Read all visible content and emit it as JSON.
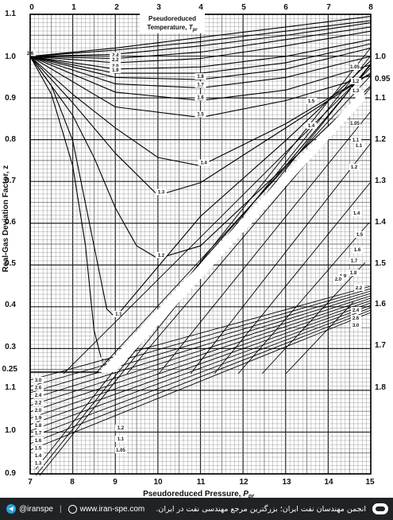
{
  "chart_data": {
    "type": "line",
    "xlabel_prefix": "Pseudoreduced Pressure, ",
    "xlabel_var": "P",
    "xlabel_sub": "pr",
    "ylabel": "Real-Gas Deviation Factor, z",
    "legend_title_line1": "Pseudoreduced",
    "legend_title_line2_prefix": "Temperature, ",
    "legend_title_var": "T",
    "legend_title_sub": "pr",
    "top_axis": {
      "ticks": [
        "0",
        "1",
        "2",
        "3",
        "4",
        "5",
        "6",
        "7",
        "8"
      ],
      "range": [
        0,
        8
      ]
    },
    "bottom_axis": {
      "ticks": [
        "7",
        "8",
        "9",
        "10",
        "11",
        "12",
        "13",
        "14",
        "15"
      ],
      "range": [
        7,
        15
      ]
    },
    "left_axis_upper": {
      "ticks": [
        "1.1",
        "1.0",
        "0.9",
        "0.8",
        "0.7",
        "0.6",
        "0.5",
        "0.4",
        "0.3",
        "0.25"
      ],
      "range": [
        0.25,
        1.1
      ]
    },
    "left_axis_lower": {
      "ticks": [
        "1.1",
        "1.0",
        "0.9"
      ],
      "range": [
        0.9,
        1.25
      ]
    },
    "right_axis": {
      "ticks": [
        "1.8",
        "1.7",
        "1.6",
        "1.5",
        "1.4",
        "1.3",
        "1.2",
        "1.1",
        "1.0",
        "0.95"
      ]
    },
    "grid": true,
    "series": [
      {
        "name": "3.0",
        "x": [
          0,
          2,
          4,
          6,
          8
        ],
        "y": [
          1.0,
          1.02,
          1.045,
          1.07,
          1.095
        ]
      },
      {
        "name": "2.8",
        "x": [
          0,
          2,
          4,
          6,
          8
        ],
        "y": [
          1.0,
          1.015,
          1.035,
          1.06,
          1.085
        ]
      },
      {
        "name": "2.6",
        "x": [
          0,
          2,
          4,
          6,
          8
        ],
        "y": [
          1.0,
          1.005,
          1.025,
          1.05,
          1.08
        ]
      },
      {
        "name": "2.4",
        "x": [
          0,
          2,
          4,
          6,
          8
        ],
        "y": [
          1.0,
          0.995,
          1.01,
          1.04,
          1.07
        ]
      },
      {
        "name": "2.2",
        "x": [
          0,
          2,
          4,
          6,
          8
        ],
        "y": [
          1.0,
          0.985,
          0.995,
          1.025,
          1.06
        ]
      },
      {
        "name": "2.0",
        "x": [
          0,
          2,
          4,
          6,
          8
        ],
        "y": [
          1.0,
          0.97,
          0.975,
          1.0,
          1.04
        ]
      },
      {
        "name": "1.9",
        "x": [
          0,
          2,
          4,
          6,
          8
        ],
        "y": [
          1.0,
          0.96,
          0.96,
          0.985,
          1.03
        ]
      },
      {
        "name": "1.8",
        "x": [
          0,
          2,
          4,
          6,
          8
        ],
        "y": [
          1.0,
          0.95,
          0.945,
          0.97,
          1.02
        ]
      },
      {
        "name": "1.7",
        "x": [
          0,
          2,
          4,
          6,
          8
        ],
        "y": [
          1.0,
          0.935,
          0.925,
          0.95,
          1.0
        ]
      },
      {
        "name": "1.6",
        "x": [
          0,
          2,
          4,
          6,
          8
        ],
        "y": [
          1.0,
          0.915,
          0.895,
          0.92,
          0.98
        ]
      },
      {
        "name": "1.5",
        "x": [
          0,
          2,
          4,
          6,
          8
        ],
        "y": [
          1.0,
          0.88,
          0.855,
          0.895,
          0.955
        ]
      },
      {
        "name": "1.4",
        "x": [
          0,
          1,
          2,
          3,
          4,
          6,
          8
        ],
        "y": [
          1.0,
          0.91,
          0.83,
          0.76,
          0.74,
          0.84,
          0.96
        ]
      },
      {
        "name": "1.3",
        "x": [
          0,
          1,
          2,
          2.5,
          3,
          4,
          6,
          8
        ],
        "y": [
          1.0,
          0.89,
          0.77,
          0.72,
          0.67,
          0.7,
          0.83,
          0.96
        ]
      },
      {
        "name": "1.2",
        "x": [
          0,
          1,
          1.5,
          2,
          2.5,
          3,
          4,
          6,
          8
        ],
        "y": [
          1.0,
          0.86,
          0.76,
          0.64,
          0.55,
          0.52,
          0.55,
          0.74,
          0.93
        ]
      },
      {
        "name": "1.1",
        "x": [
          0,
          0.5,
          1,
          1.5,
          1.8,
          2,
          2.5,
          3,
          4,
          6,
          8
        ],
        "y": [
          1.0,
          0.93,
          0.8,
          0.55,
          0.4,
          0.38,
          0.44,
          0.5,
          0.62,
          0.8,
          0.99
        ]
      },
      {
        "name": "1.05",
        "x": [
          0,
          0.5,
          1,
          1.3,
          1.5,
          1.7,
          2,
          3,
          4,
          6,
          8
        ],
        "y": [
          1.0,
          0.91,
          0.74,
          0.55,
          0.35,
          0.27,
          0.27,
          0.38,
          0.51,
          0.74,
          0.98
        ]
      }
    ],
    "right_labels": [
      "1.05",
      "1.2",
      "1.3",
      "1.5",
      "1.4",
      "1.1",
      "1.05",
      "1.1",
      "1.2",
      "1.4",
      "1.5",
      "1.6",
      "1.7",
      "1.8",
      "1.9",
      "2.0",
      "2.2",
      "2.4",
      "2.6",
      "3.0"
    ],
    "lower_left_labels": [
      "3.0",
      "2.6",
      "2.4",
      "2.2",
      "2.0",
      "1.9",
      "1.8",
      "1.7",
      "1.6",
      "1.5",
      "1.4",
      "1.3"
    ],
    "lower_mid_labels": [
      "1.2",
      "1.1",
      "1.05"
    ]
  },
  "footer": {
    "handle": "@iranspe",
    "website": "www.iran-spe.com",
    "tagline": "انجمن مهندسان نفت ایران؛ بزرگترین مرجع مهندسی نفت در ایران."
  }
}
